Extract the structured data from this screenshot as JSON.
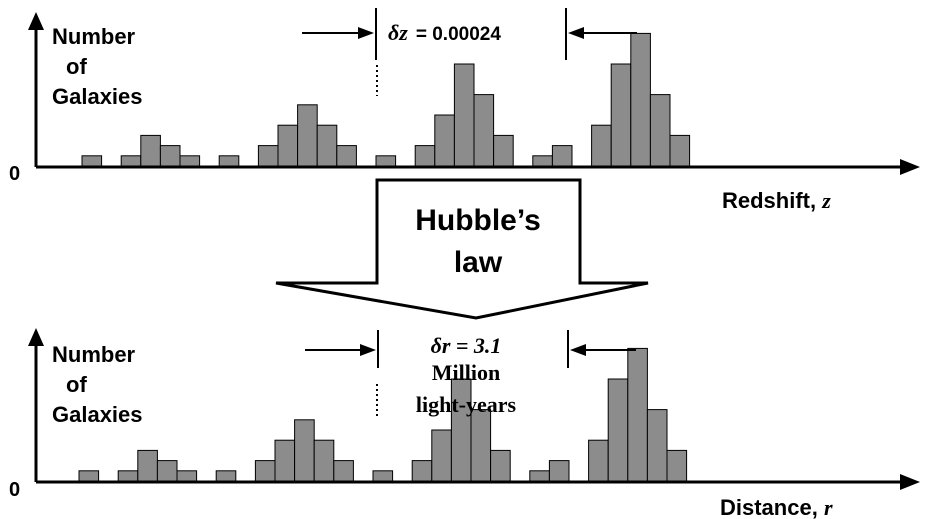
{
  "top_panel": {
    "ylabel_line1": "Number",
    "ylabel_line2": "of",
    "ylabel_line3": "Galaxies",
    "origin_label": "0",
    "xlabel_text": "Redshift, ",
    "xlabel_symbol": "z",
    "spacing_label_symbol": "δz",
    "spacing_label_value": "=  0.00024",
    "histogram_counts": [
      1,
      0,
      1,
      3,
      2,
      1,
      0,
      1,
      0,
      2,
      4,
      6,
      4,
      2,
      0,
      1,
      0,
      2,
      5,
      10,
      7,
      3,
      0,
      1,
      2,
      0,
      4,
      10,
      13,
      7,
      3
    ]
  },
  "arrow": {
    "line1": "Hubble’s",
    "line2": "law"
  },
  "bottom_panel": {
    "ylabel_line1": "Number",
    "ylabel_line2": "of",
    "ylabel_line3": "Galaxies",
    "origin_label": "0",
    "xlabel_text": "Distance, ",
    "xlabel_symbol": "r",
    "spacing_label_line1": "δr = 3.1",
    "spacing_label_line2": "Million",
    "spacing_label_line3": "light-years",
    "histogram_counts": [
      1,
      0,
      1,
      3,
      2,
      1,
      0,
      1,
      0,
      2,
      4,
      6,
      4,
      2,
      0,
      1,
      0,
      2,
      5,
      10,
      7,
      3,
      0,
      1,
      2,
      0,
      4,
      10,
      13,
      7,
      3
    ]
  },
  "colors": {
    "bar_fill": "#8c8c8c",
    "ink": "#000000"
  }
}
